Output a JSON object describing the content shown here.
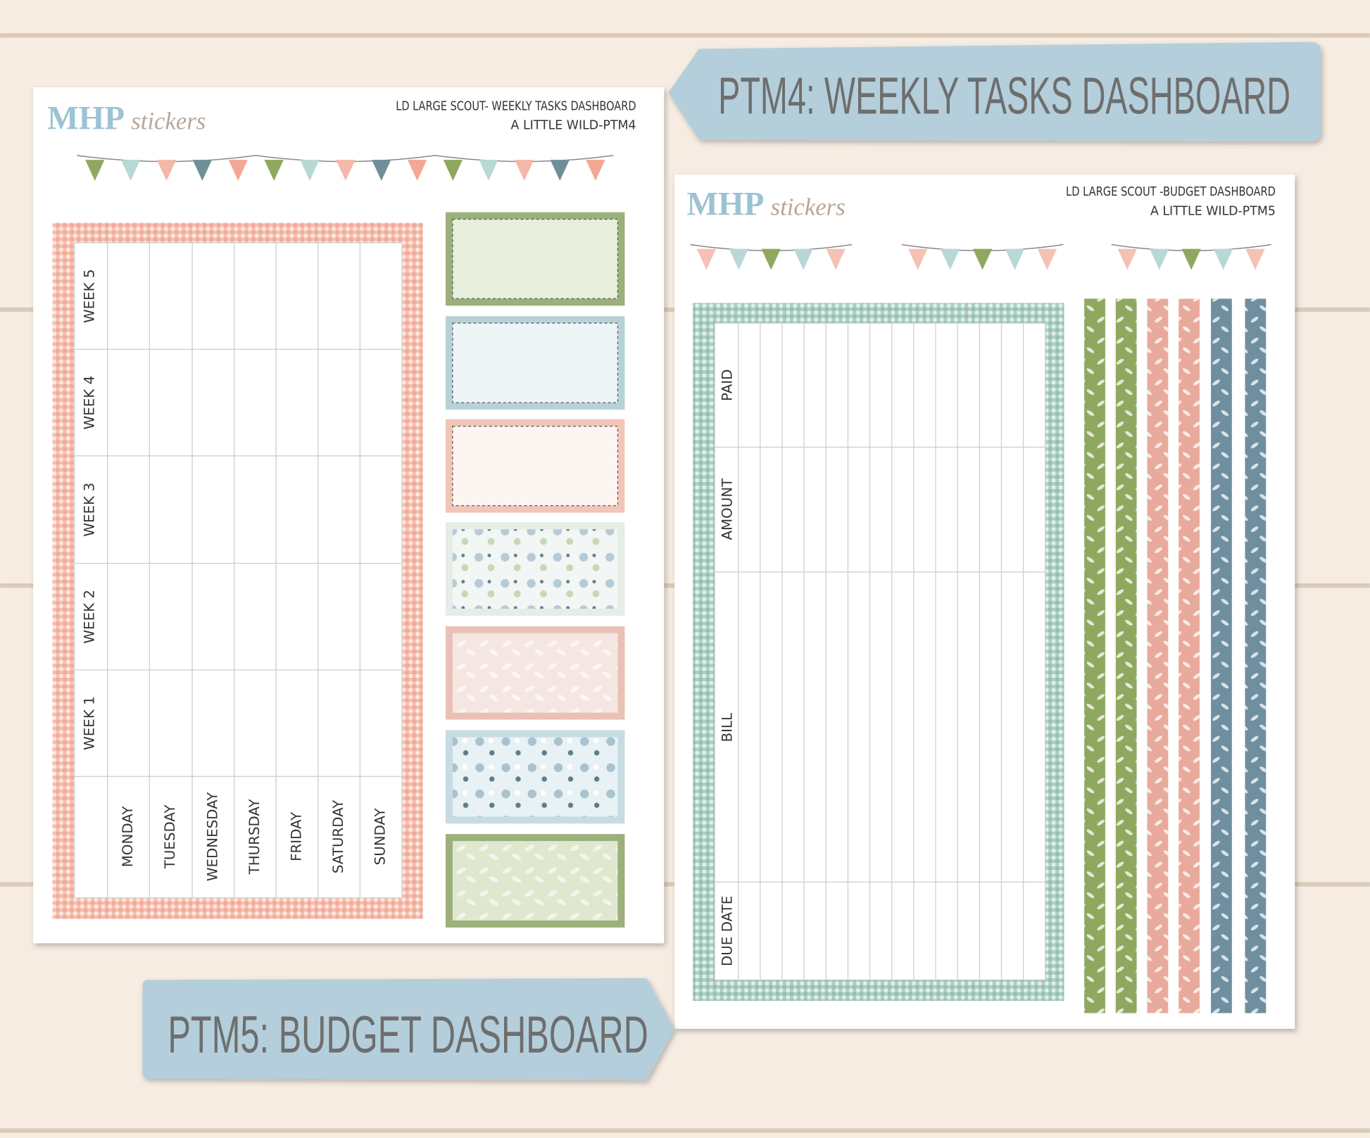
{
  "banners": {
    "top": "PTM4: WEEKLY TASKS DASHBOARD",
    "bottom": "PTM5: BUDGET DASHBOARD"
  },
  "sheet1": {
    "logo": {
      "brand": "MHP",
      "script": "stickers"
    },
    "header": [
      "LD LARGE SCOUT- WEEKLY TASKS DASHBOARD",
      "A LITTLE WILD-PTM4"
    ],
    "weeks": [
      "WEEK 5",
      "WEEK 4",
      "WEEK 3",
      "WEEK 2",
      "WEEK 1"
    ],
    "days": [
      "MONDAY",
      "TUESDAY",
      "WEDNESDAY",
      "THURSDAY",
      "FRIDAY",
      "SATURDAY",
      "SUNDAY"
    ]
  },
  "sheet2": {
    "logo": {
      "brand": "MHP",
      "script": "stickers"
    },
    "header": [
      "LD LARGE SCOUT -BUDGET DASHBOARD",
      "A LITTLE WILD-PTM5"
    ],
    "columns": [
      "PAID",
      "AMOUNT",
      "BILL",
      "DUE DATE"
    ]
  }
}
